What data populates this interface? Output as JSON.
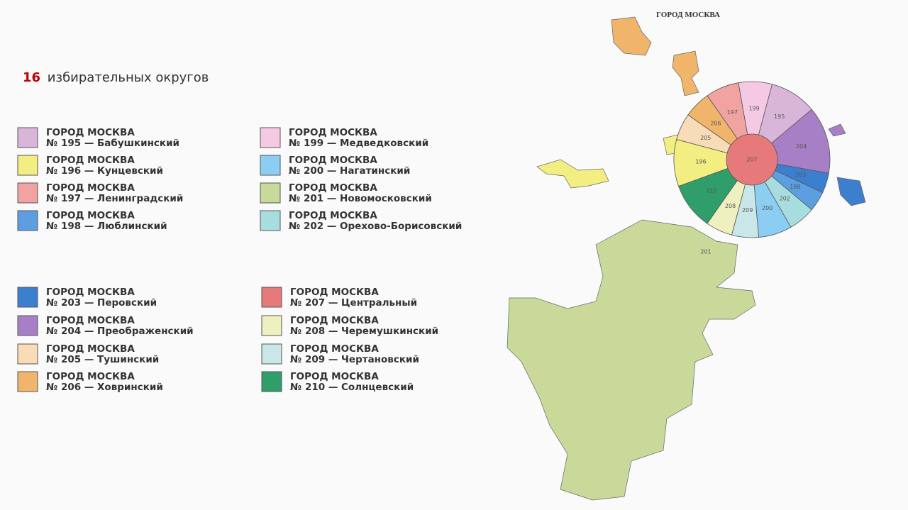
{
  "header": {
    "count": "16",
    "text": "избирательных округов"
  },
  "legend": {
    "items": [
      {
        "region": "ГОРОД МОСКВА",
        "district": "№ 195 — Бабушкинский",
        "color": "#d9b6d9"
      },
      {
        "region": "ГОРОД МОСКВА",
        "district": "№ 196 — Кунцевский",
        "color": "#f2ee82"
      },
      {
        "region": "ГОРОД МОСКВА",
        "district": "№ 197 — Ленинградский",
        "color": "#f0a3a0"
      },
      {
        "region": "ГОРОД МОСКВА",
        "district": "№ 198 — Люблинский",
        "color": "#5c9ee0"
      },
      {
        "region": "ГОРОД МОСКВА",
        "district": "№ 199 — Медведковский",
        "color": "#f5c9e3"
      },
      {
        "region": "ГОРОД МОСКВА",
        "district": "№ 200 — Нагатинский",
        "color": "#8ccdf2"
      },
      {
        "region": "ГОРОД МОСКВА",
        "district": "№ 201 — Новомосковский",
        "color": "#c9d99a"
      },
      {
        "region": "ГОРОД МОСКВА",
        "district": "№ 202 — Орехово-Борисовский",
        "color": "#a8dde0"
      },
      {
        "region": "ГОРОД МОСКВА",
        "district": "№ 203 — Перовский",
        "color": "#3d7fcf"
      },
      {
        "region": "ГОРОД МОСКВА",
        "district": "№ 204 — Преображенский",
        "color": "#a77fc7"
      },
      {
        "region": "ГОРОД МОСКВА",
        "district": "№ 205 — Тушинский",
        "color": "#f7dcb7"
      },
      {
        "region": "ГОРОД МОСКВА",
        "district": "№ 206 — Ховринский",
        "color": "#f0b56b"
      },
      {
        "region": "ГОРОД МОСКВА",
        "district": "№ 207 — Центральный",
        "color": "#e6797a"
      },
      {
        "region": "ГОРОД МОСКВА",
        "district": "№ 208 — Черемушкинский",
        "color": "#eef0bf"
      },
      {
        "region": "ГОРОД МОСКВА",
        "district": "№ 209 — Чертановский",
        "color": "#c9e6e8"
      },
      {
        "region": "ГОРОД МОСКВА",
        "district": "№ 210 — Солнцевский",
        "color": "#2f9e6a"
      }
    ]
  },
  "map": {
    "title": "ГОРОД МОСКВА",
    "labels": [
      "195",
      "196",
      "197",
      "198",
      "199",
      "200",
      "201",
      "202",
      "203",
      "204",
      "205",
      "206",
      "207",
      "208",
      "209",
      "210"
    ]
  }
}
